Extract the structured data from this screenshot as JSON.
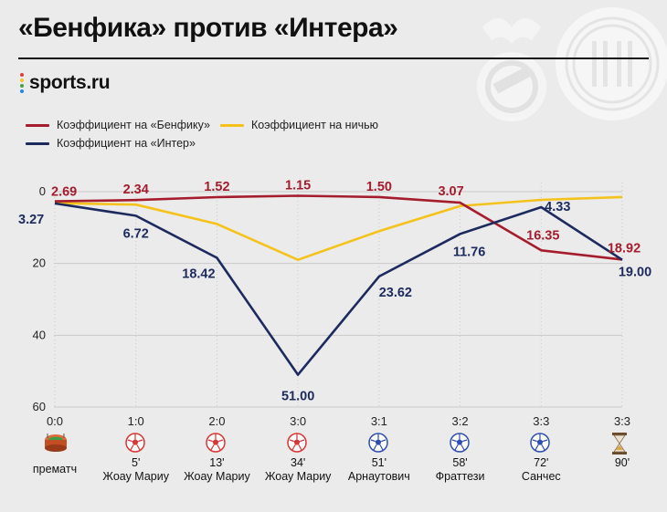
{
  "header": {
    "title": "«Бенфика» против «Интера»",
    "brand": "sports.ru"
  },
  "colors": {
    "benfica": "#a51d2d",
    "draw": "#f5c21b",
    "inter": "#1c2a5e",
    "grid": "#c9c9c9",
    "background": "#ebebeb"
  },
  "chart_data": {
    "type": "line",
    "categories": [
      "0:0",
      "1:0",
      "2:0",
      "3:0",
      "3:1",
      "3:2",
      "3:3",
      "3:3"
    ],
    "events": [
      {
        "icon": "stadium-icon",
        "minute": "",
        "player": "прематч"
      },
      {
        "icon": "benfica-ball-icon",
        "minute": "5'",
        "player": "Жоау Мариу"
      },
      {
        "icon": "benfica-ball-icon",
        "minute": "13'",
        "player": "Жоау Мариу"
      },
      {
        "icon": "benfica-ball-icon",
        "minute": "34'",
        "player": "Жоау Мариу"
      },
      {
        "icon": "inter-ball-icon",
        "minute": "51'",
        "player": "Арнаутович"
      },
      {
        "icon": "inter-ball-icon",
        "minute": "58'",
        "player": "Фраттези"
      },
      {
        "icon": "inter-ball-icon",
        "minute": "72'",
        "player": "Санчес"
      },
      {
        "icon": "hourglass-icon",
        "minute": "90'",
        "player": ""
      }
    ],
    "series": [
      {
        "name": "Коэффициент на «Бенфику»",
        "color": "#a51d2d",
        "values": [
          2.69,
          2.34,
          1.52,
          1.15,
          1.5,
          3.07,
          16.35,
          18.92
        ],
        "labels": [
          "2.69",
          "2.34",
          "1.52",
          "1.15",
          "1.50",
          "3.07",
          "16.35",
          "18.92"
        ]
      },
      {
        "name": "Коэффициент на ничью",
        "color": "#f5c21b",
        "values": [
          3.2,
          3.6,
          9.0,
          19.0,
          11.0,
          4.0,
          2.3,
          1.5
        ],
        "labels": []
      },
      {
        "name": "Коэффициент на «Интер»",
        "color": "#1c2a5e",
        "values": [
          3.27,
          6.72,
          18.42,
          51.0,
          23.62,
          11.76,
          4.33,
          19.0
        ],
        "labels": [
          "3.27",
          "6.72",
          "18.42",
          "51.00",
          "23.62",
          "11.76",
          "4.33",
          "19.00"
        ]
      }
    ],
    "yticks": [
      "0",
      "20",
      "40",
      "60"
    ],
    "ylim": [
      0,
      60
    ],
    "y_inverted": true,
    "grid": true,
    "legend": "top-left"
  }
}
